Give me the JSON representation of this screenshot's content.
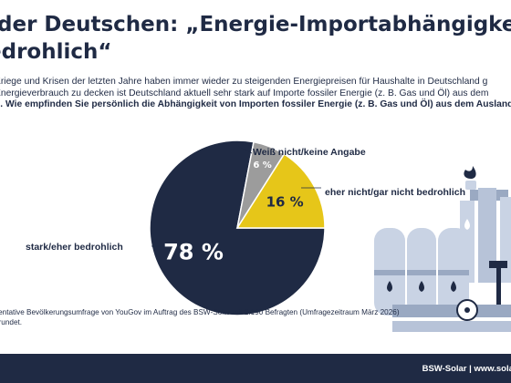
{
  "title": {
    "line1": "der Deutschen: „Energie-Importabhängigkeit",
    "line2": "edrohlich“"
  },
  "intro": {
    "line1": "Kriege und Krisen der letzten Jahre haben immer wieder zu steigenden Energiepreisen für Haushalte in Deutschland g",
    "line2": "Energieverbrauch zu decken ist Deutschland aktuell sehr stark auf Importe fossiler Energie (z. B. Gas und Öl) aus dem",
    "line3": "n. Wie empfinden Sie persönlich die Abhängigkeit von Importen fossiler Energie (z. B. Gas und Öl) aus dem Ausland?"
  },
  "chart_data": {
    "type": "pie",
    "slices": [
      {
        "label": "stark/eher bedrohlich",
        "value": 78,
        "value_label": "78 %",
        "color": "#1f2a44"
      },
      {
        "label": "eher nicht/gar nicht bedrohlich",
        "value": 16,
        "value_label": "16 %",
        "color": "#e6c619"
      },
      {
        "label": "Weiß nicht/keine Angabe",
        "value": 6,
        "value_label": "6 %",
        "color": "#9c9c9c"
      }
    ],
    "legend": "none"
  },
  "source": {
    "line1": "sentative Bevölkerungsumfrage von YouGov im Auftrag des BSW-Solar mit 2.190 Befragten (Umfragezeitraum März 2026)",
    "line2": "erundet."
  },
  "footer": {
    "text": "BSW-Solar | www.solarw"
  },
  "colors": {
    "navy": "#1f2a44",
    "yellow": "#e6c619",
    "gray": "#9c9c9c",
    "illustration_light": "#c9d3e4",
    "illustration_mid": "#9aa9c2"
  }
}
